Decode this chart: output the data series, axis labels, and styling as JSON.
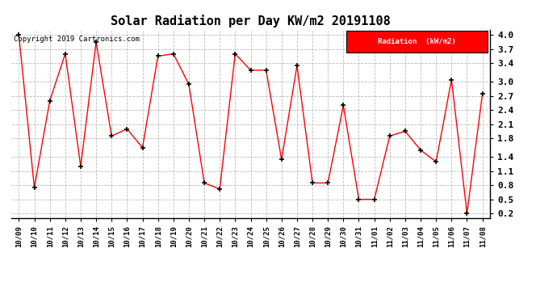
{
  "title": "Solar Radiation per Day KW/m2 20191108",
  "copyright": "Copyright 2019 Cartronics.com",
  "legend_label": "Radiation  (kW/m2)",
  "line_color": "#ff0000",
  "marker_color": "#000000",
  "background_color": "#ffffff",
  "grid_color": "#aaaaaa",
  "dates": [
    "10/09",
    "10/10",
    "10/11",
    "10/12",
    "10/13",
    "10/14",
    "10/15",
    "10/16",
    "10/17",
    "10/18",
    "10/19",
    "10/20",
    "10/21",
    "10/22",
    "10/23",
    "10/24",
    "10/25",
    "10/26",
    "10/27",
    "10/28",
    "10/29",
    "10/30",
    "10/31",
    "11/01",
    "11/02",
    "11/03",
    "11/04",
    "11/05",
    "11/06",
    "11/07",
    "11/08"
  ],
  "values": [
    4.0,
    0.75,
    2.6,
    3.6,
    1.2,
    3.85,
    1.85,
    2.0,
    1.6,
    3.55,
    3.6,
    2.95,
    0.85,
    0.72,
    3.6,
    3.25,
    3.25,
    1.35,
    3.35,
    0.85,
    0.85,
    2.5,
    0.5,
    0.5,
    1.85,
    1.95,
    1.55,
    1.3,
    3.05,
    0.2,
    2.75
  ],
  "yticks": [
    0.2,
    0.5,
    0.8,
    1.1,
    1.4,
    1.8,
    2.1,
    2.4,
    2.7,
    3.0,
    3.4,
    3.7,
    4.0
  ],
  "ylim": [
    0.1,
    4.1
  ],
  "figsize": [
    6.9,
    3.75
  ],
  "dpi": 100
}
